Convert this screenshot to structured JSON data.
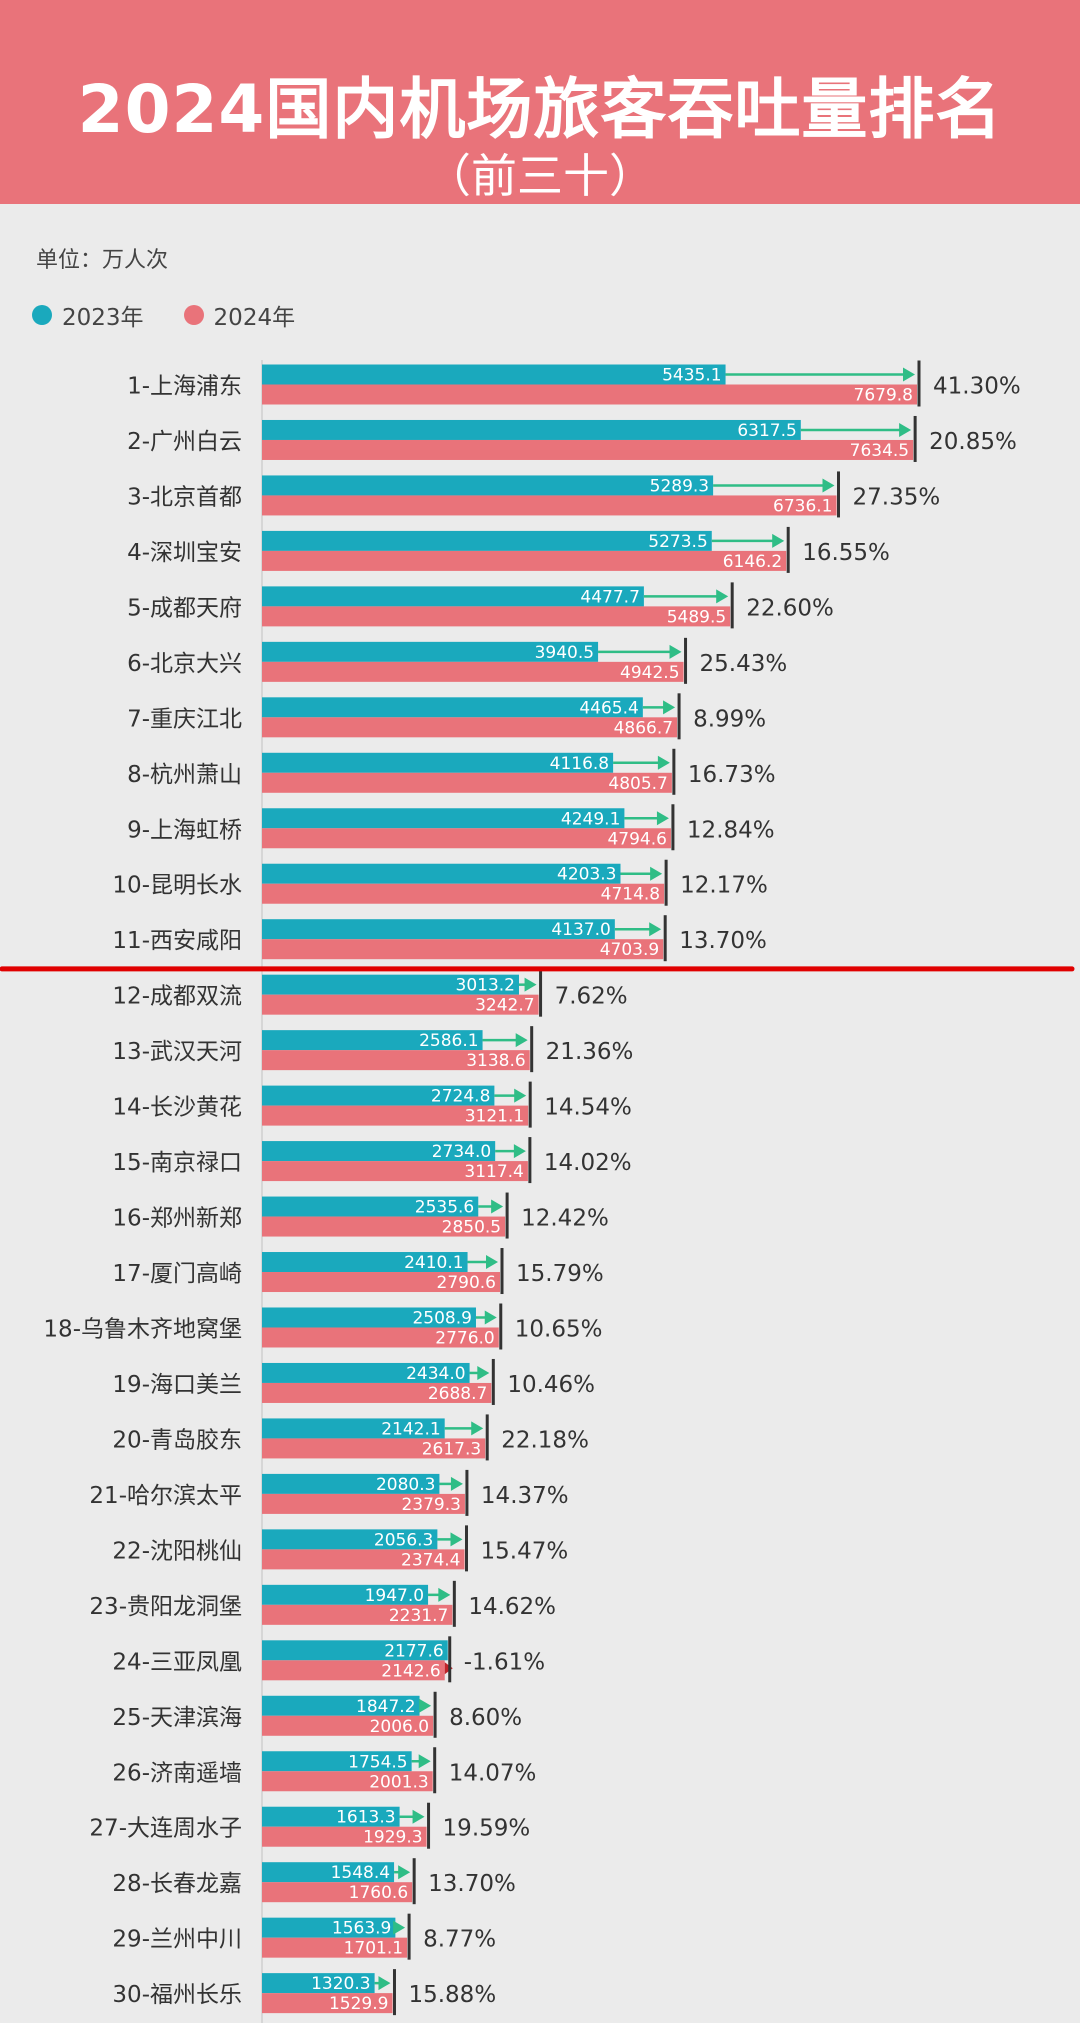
{
  "header": {
    "title": "2024国内机场旅客吞吐量排名",
    "subtitle": "（前三十）"
  },
  "unit_label": "单位：万人次",
  "colors": {
    "header_bg": "#e9737a",
    "series_2023": "#1aa9bd",
    "series_2024": "#e9737a",
    "arrow": "#2fbd86",
    "cutoff_line": "#e00000"
  },
  "chart_data": {
    "type": "bar",
    "orientation": "horizontal",
    "unit": "万人次",
    "legend_position": "top-left",
    "categories": [
      "1-上海浦东",
      "2-广州白云",
      "3-北京首都",
      "4-深圳宝安",
      "5-成都天府",
      "6-北京大兴",
      "7-重庆江北",
      "8-杭州萧山",
      "9-上海虹桥",
      "10-昆明长水",
      "11-西安咸阳",
      "12-成都双流",
      "13-武汉天河",
      "14-长沙黄花",
      "15-南京禄口",
      "16-郑州新郑",
      "17-厦门高崎",
      "18-乌鲁木齐地窝堡",
      "19-海口美兰",
      "20-青岛胶东",
      "21-哈尔滨太平",
      "22-沈阳桃仙",
      "23-贵阳龙洞堡",
      "24-三亚凤凰",
      "25-天津滨海",
      "26-济南遥墙",
      "27-大连周水子",
      "28-长春龙嘉",
      "29-兰州中川",
      "30-福州长乐"
    ],
    "series": [
      {
        "name": "2023年",
        "values": [
          5435.1,
          6317.5,
          5289.3,
          5273.5,
          4477.7,
          3940.5,
          4465.4,
          4116.8,
          4249.1,
          4203.3,
          4137.0,
          3013.2,
          2586.1,
          2724.8,
          2734.0,
          2535.6,
          2410.1,
          2508.9,
          2434.0,
          2142.1,
          2080.3,
          2056.3,
          1947.0,
          2177.6,
          1847.2,
          1754.5,
          1613.3,
          1548.4,
          1563.9,
          1320.3
        ],
        "labels": [
          "5435.1",
          "6317.5",
          "5289.3",
          "5273.5",
          "4477.7",
          "3940.5",
          "4465.4",
          "4116.8",
          "4249.1",
          "4203.3",
          "4137.0",
          "3013.2",
          "2586.1",
          "2724.8",
          "2734.0",
          "2535.6",
          "2410.1",
          "2508.9",
          "2434.0",
          "2142.1",
          "2080.3",
          "2056.3",
          "1947.0",
          "2177.6",
          "1847.2",
          "1754.5",
          "1613.3",
          "1548.4",
          "1563.9",
          "1320.3"
        ]
      },
      {
        "name": "2024年",
        "values": [
          7679.8,
          7634.5,
          6736.1,
          6146.2,
          5489.5,
          4942.5,
          4866.7,
          4805.7,
          4794.6,
          4714.8,
          4703.9,
          3242.7,
          3138.6,
          3121.1,
          3117.4,
          2850.5,
          2790.6,
          2776.0,
          2688.7,
          2617.3,
          2379.3,
          2374.4,
          2231.7,
          2142.6,
          2006.0,
          2001.3,
          1929.3,
          1760.6,
          1701.1,
          1529.9
        ],
        "labels": [
          "7679.8",
          "7634.5",
          "6736.1",
          "6146.2",
          "5489.5",
          "4942.5",
          "4866.7",
          "4805.7",
          "4794.6",
          "4714.8",
          "4703.9",
          "3242.7",
          "3138.6",
          "3121.1",
          "3117.4",
          "2850.5",
          "2790.6",
          "2776.0",
          "2688.7",
          "2617.3",
          "2379.3",
          "2374.4",
          "2231.7",
          "2142.6",
          "2006.0",
          "2001.3",
          "1929.3",
          "1760.6",
          "1701.1",
          "1529.9"
        ]
      }
    ],
    "growth": [
      "41.30%",
      "20.85%",
      "27.35%",
      "16.55%",
      "22.60%",
      "25.43%",
      "8.99%",
      "16.73%",
      "12.84%",
      "12.17%",
      "13.70%",
      "7.62%",
      "21.36%",
      "14.54%",
      "14.02%",
      "12.42%",
      "15.79%",
      "10.65%",
      "10.46%",
      "22.18%",
      "14.37%",
      "15.47%",
      "14.62%",
      "-1.61%",
      "8.60%",
      "14.07%",
      "19.59%",
      "13.70%",
      "8.77%",
      "15.88%"
    ],
    "cutoff_after_rank": 11,
    "xlim": [
      0,
      8000
    ]
  }
}
